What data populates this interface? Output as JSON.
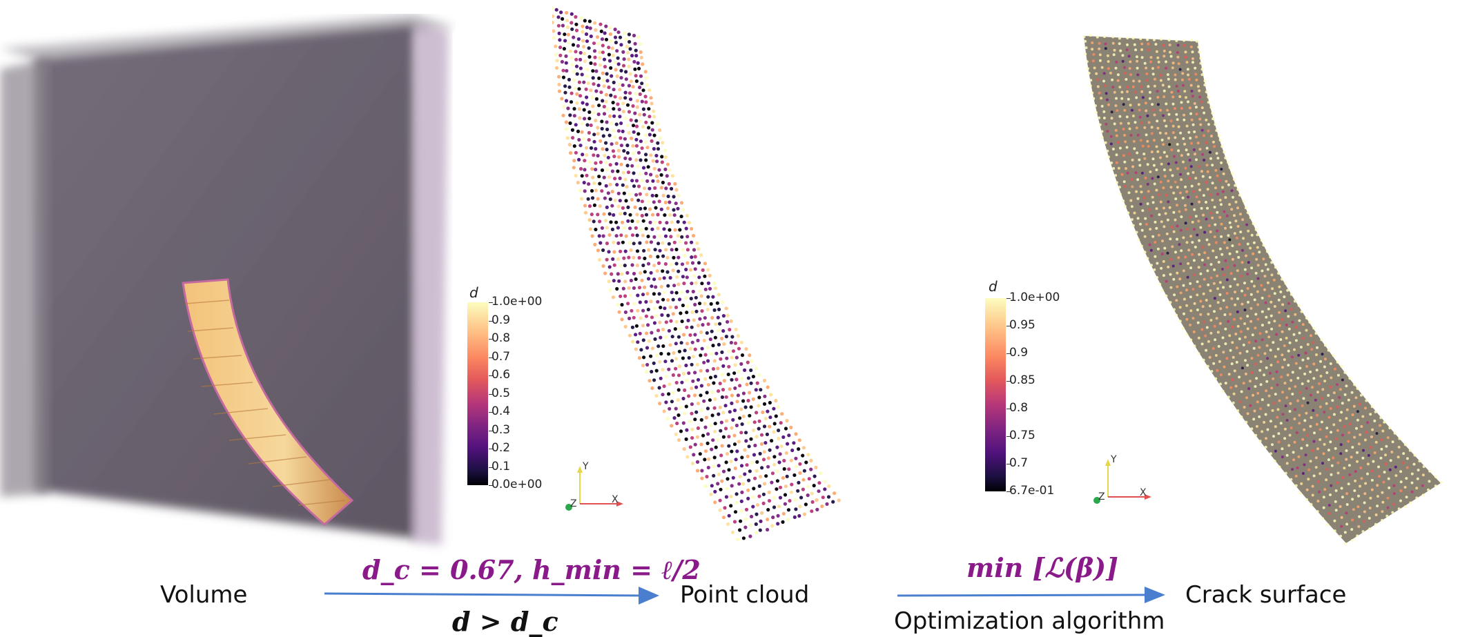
{
  "stages": {
    "volume": "Volume",
    "point_cloud": "Point cloud",
    "crack_surface": "Crack surface"
  },
  "arrow1": {
    "top_formula": "d_c = 0.67, h_min = ℓ/2",
    "bottom_formula": "d > d_c"
  },
  "arrow2": {
    "top_formula": "min [ℒ(β)]",
    "bottom_label": "Optimization algorithm"
  },
  "colorbar_left": {
    "title": "d",
    "ticks": [
      "1.0e+00",
      "0.9",
      "0.8",
      "0.7",
      "0.6",
      "0.5",
      "0.4",
      "0.3",
      "0.2",
      "0.1",
      "0.0e+00"
    ]
  },
  "colorbar_right": {
    "title": "d",
    "ticks": [
      "1.0e+00",
      "0.95",
      "0.9",
      "0.85",
      "0.8",
      "0.75",
      "0.7",
      "6.7e-01"
    ]
  },
  "axes_triad": {
    "y": "Y",
    "x": "X",
    "z": "Z"
  },
  "colors": {
    "arrow": "#4a7fd0",
    "formula": "#8a1a8a",
    "volume_box": "#6b6470",
    "crack_surface_fill": "#8a8272"
  }
}
